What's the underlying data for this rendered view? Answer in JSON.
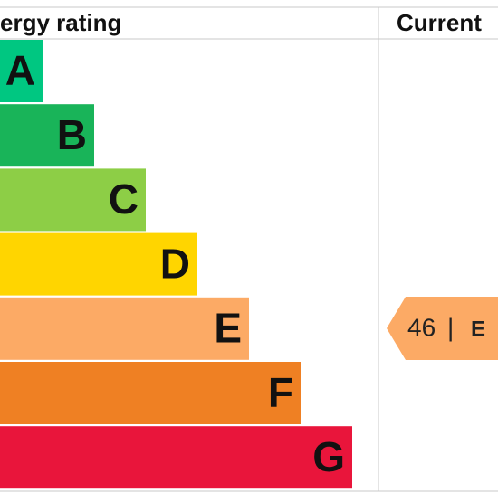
{
  "header": {
    "title": "ergy rating",
    "current": "Current"
  },
  "bands": [
    {
      "letter": "A",
      "color": "#00c781"
    },
    {
      "letter": "B",
      "color": "#19b459"
    },
    {
      "letter": "C",
      "color": "#8dce46"
    },
    {
      "letter": "D",
      "color": "#ffd500"
    },
    {
      "letter": "E",
      "color": "#fcaa65"
    },
    {
      "letter": "F",
      "color": "#ef8023"
    },
    {
      "letter": "G",
      "color": "#e9153b"
    }
  ],
  "current": {
    "value": 46,
    "band": "E",
    "color": "#fcaa65"
  }
}
